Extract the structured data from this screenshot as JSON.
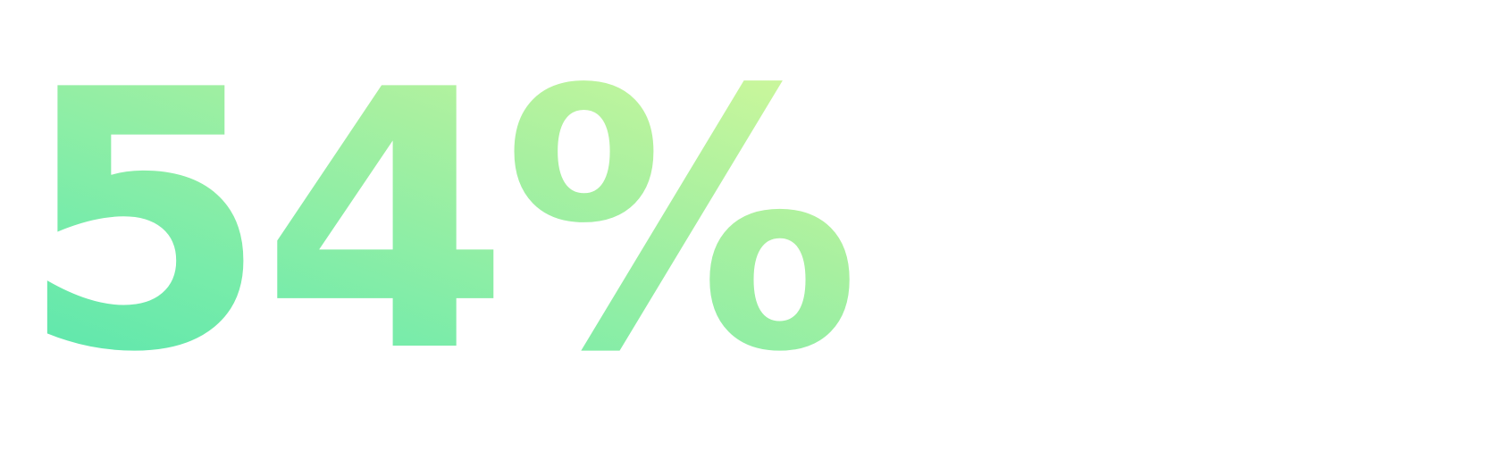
{
  "stat": {
    "value": "54%",
    "gradient_colors": [
      "#d6f99a",
      "#a8f0a0",
      "#78ecaa",
      "#55e5ad"
    ]
  }
}
